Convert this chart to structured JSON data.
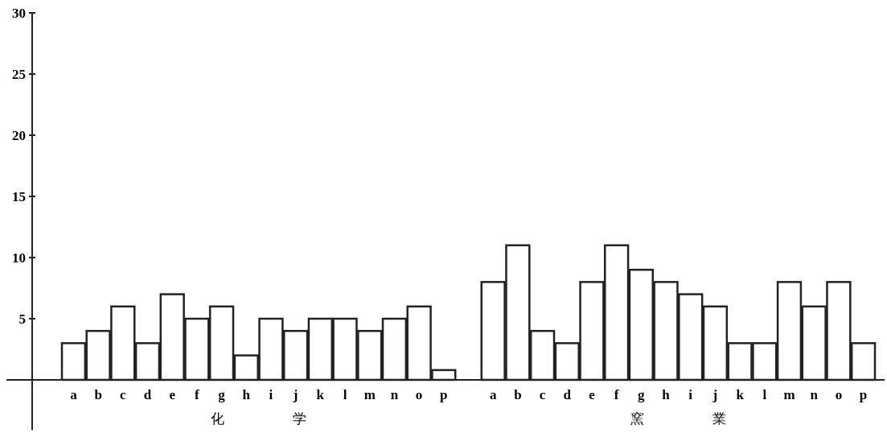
{
  "chart_data": {
    "type": "bar",
    "categories": [
      "a",
      "b",
      "c",
      "d",
      "e",
      "f",
      "g",
      "h",
      "i",
      "j",
      "k",
      "l",
      "m",
      "n",
      "o",
      "p",
      null,
      "a",
      "b",
      "c",
      "d",
      "e",
      "f",
      "g",
      "h",
      "i",
      "j",
      "k",
      "l",
      "m",
      "n",
      "o",
      "p"
    ],
    "values": [
      3,
      4,
      6,
      3,
      7,
      5,
      6,
      2,
      5,
      4,
      5,
      5,
      4,
      5,
      6,
      0.8,
      null,
      8,
      11,
      4,
      3,
      8,
      11,
      9,
      8,
      7,
      6,
      3,
      3,
      8,
      6,
      8,
      3
    ],
    "color": "#ffffff",
    "ylim": [
      -4.1,
      30
    ],
    "yticks": [
      5,
      10,
      15,
      20,
      25,
      30
    ],
    "grid": false,
    "annotations": [
      "化　　　　　学",
      "窯　　　　　業"
    ]
  }
}
